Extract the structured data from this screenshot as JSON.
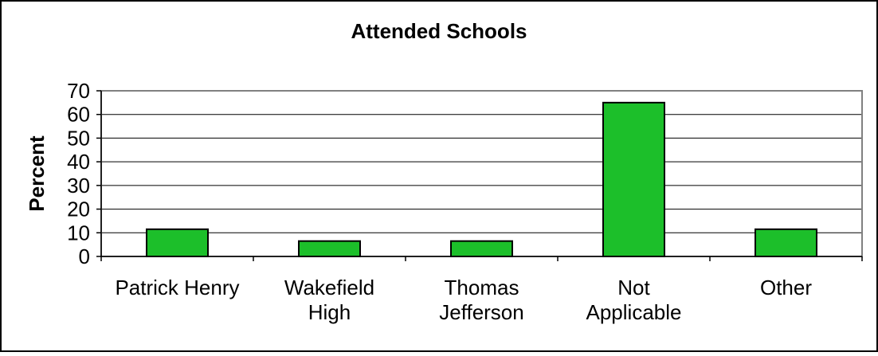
{
  "chart_data": {
    "type": "bar",
    "title": "Attended Schools",
    "xlabel": "",
    "ylabel": "Percent",
    "categories": [
      "Patrick Henry",
      "Wakefield High",
      "Thomas Jefferson",
      "Not Applicable",
      "Other"
    ],
    "category_lines": [
      [
        "Patrick Henry"
      ],
      [
        "Wakefield",
        "High"
      ],
      [
        "Thomas",
        "Jefferson"
      ],
      [
        "Not",
        "Applicable"
      ],
      [
        "Other"
      ]
    ],
    "values": [
      11.5,
      6.5,
      6.5,
      65,
      11.5
    ],
    "ylim": [
      0,
      70
    ],
    "yticks": [
      0,
      10,
      20,
      30,
      40,
      50,
      60,
      70
    ],
    "grid": true,
    "legend": "none",
    "colors": {
      "bar_fill": "#1CBF2A",
      "bar_stroke": "#000000",
      "gridline": "#000000",
      "plot_border": "#808080",
      "text": "#000000"
    }
  }
}
